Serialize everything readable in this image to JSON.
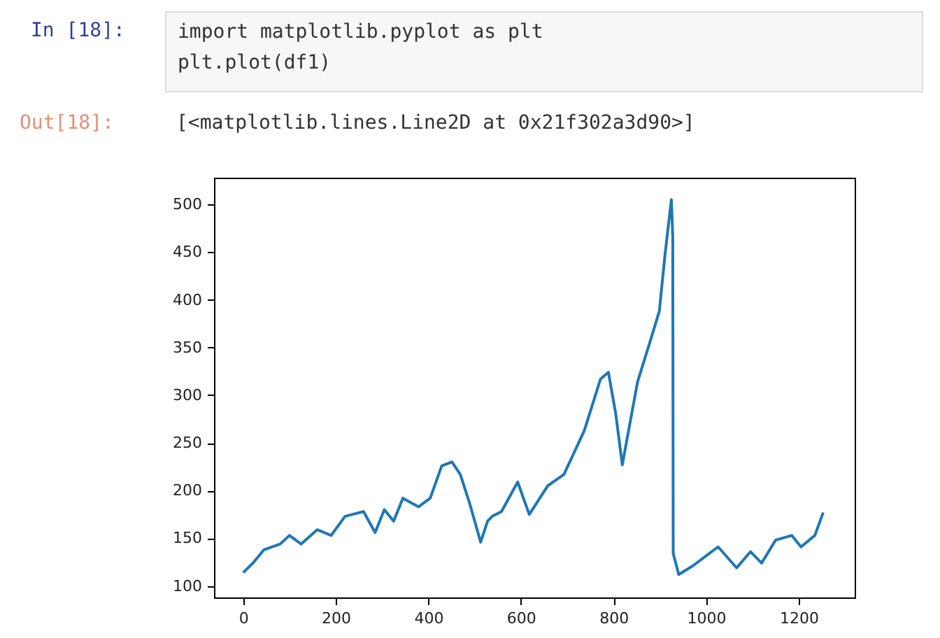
{
  "chart_data": {
    "type": "line",
    "annotations": [
      "In [18]:",
      "import matplotlib.pyplot as plt",
      "plt.plot(df1)",
      "Out[18]:",
      "[<matplotlib.lines.Line2D at 0x21f302a3d90>]"
    ],
    "x": [
      0,
      21,
      45,
      80,
      100,
      125,
      160,
      190,
      220,
      260,
      285,
      305,
      325,
      345,
      379,
      404,
      429,
      451,
      469,
      489,
      513,
      528,
      538,
      558,
      593,
      618,
      658,
      693,
      737,
      772,
      789,
      805,
      819,
      852,
      877,
      899,
      911,
      925,
      928,
      929,
      941,
      971,
      1026,
      1066,
      1096,
      1120,
      1150,
      1185,
      1205,
      1235,
      1253
    ],
    "series": [
      {
        "color": "#1f77b4",
        "values": [
          114,
          124,
          138,
          144,
          153,
          144,
          159,
          153,
          173,
          178,
          156,
          180,
          168,
          192,
          183,
          192,
          226,
          230,
          217,
          187,
          146,
          168,
          173,
          178,
          209,
          175,
          205,
          217,
          263,
          317,
          324,
          280,
          227,
          314,
          353,
          388,
          446,
          505,
          466,
          134,
          112,
          121,
          141,
          119,
          136,
          124,
          148,
          153,
          141,
          153,
          177
        ]
      }
    ],
    "xlim": [
      -63,
      1321
    ],
    "ylim": [
      88,
      528
    ],
    "xticks": [
      0,
      200,
      400,
      600,
      800,
      1000,
      1200
    ],
    "yticks": [
      100,
      150,
      200,
      250,
      300,
      350,
      400,
      450,
      500
    ],
    "grid": false,
    "marker": "none",
    "line_style": "solid"
  }
}
